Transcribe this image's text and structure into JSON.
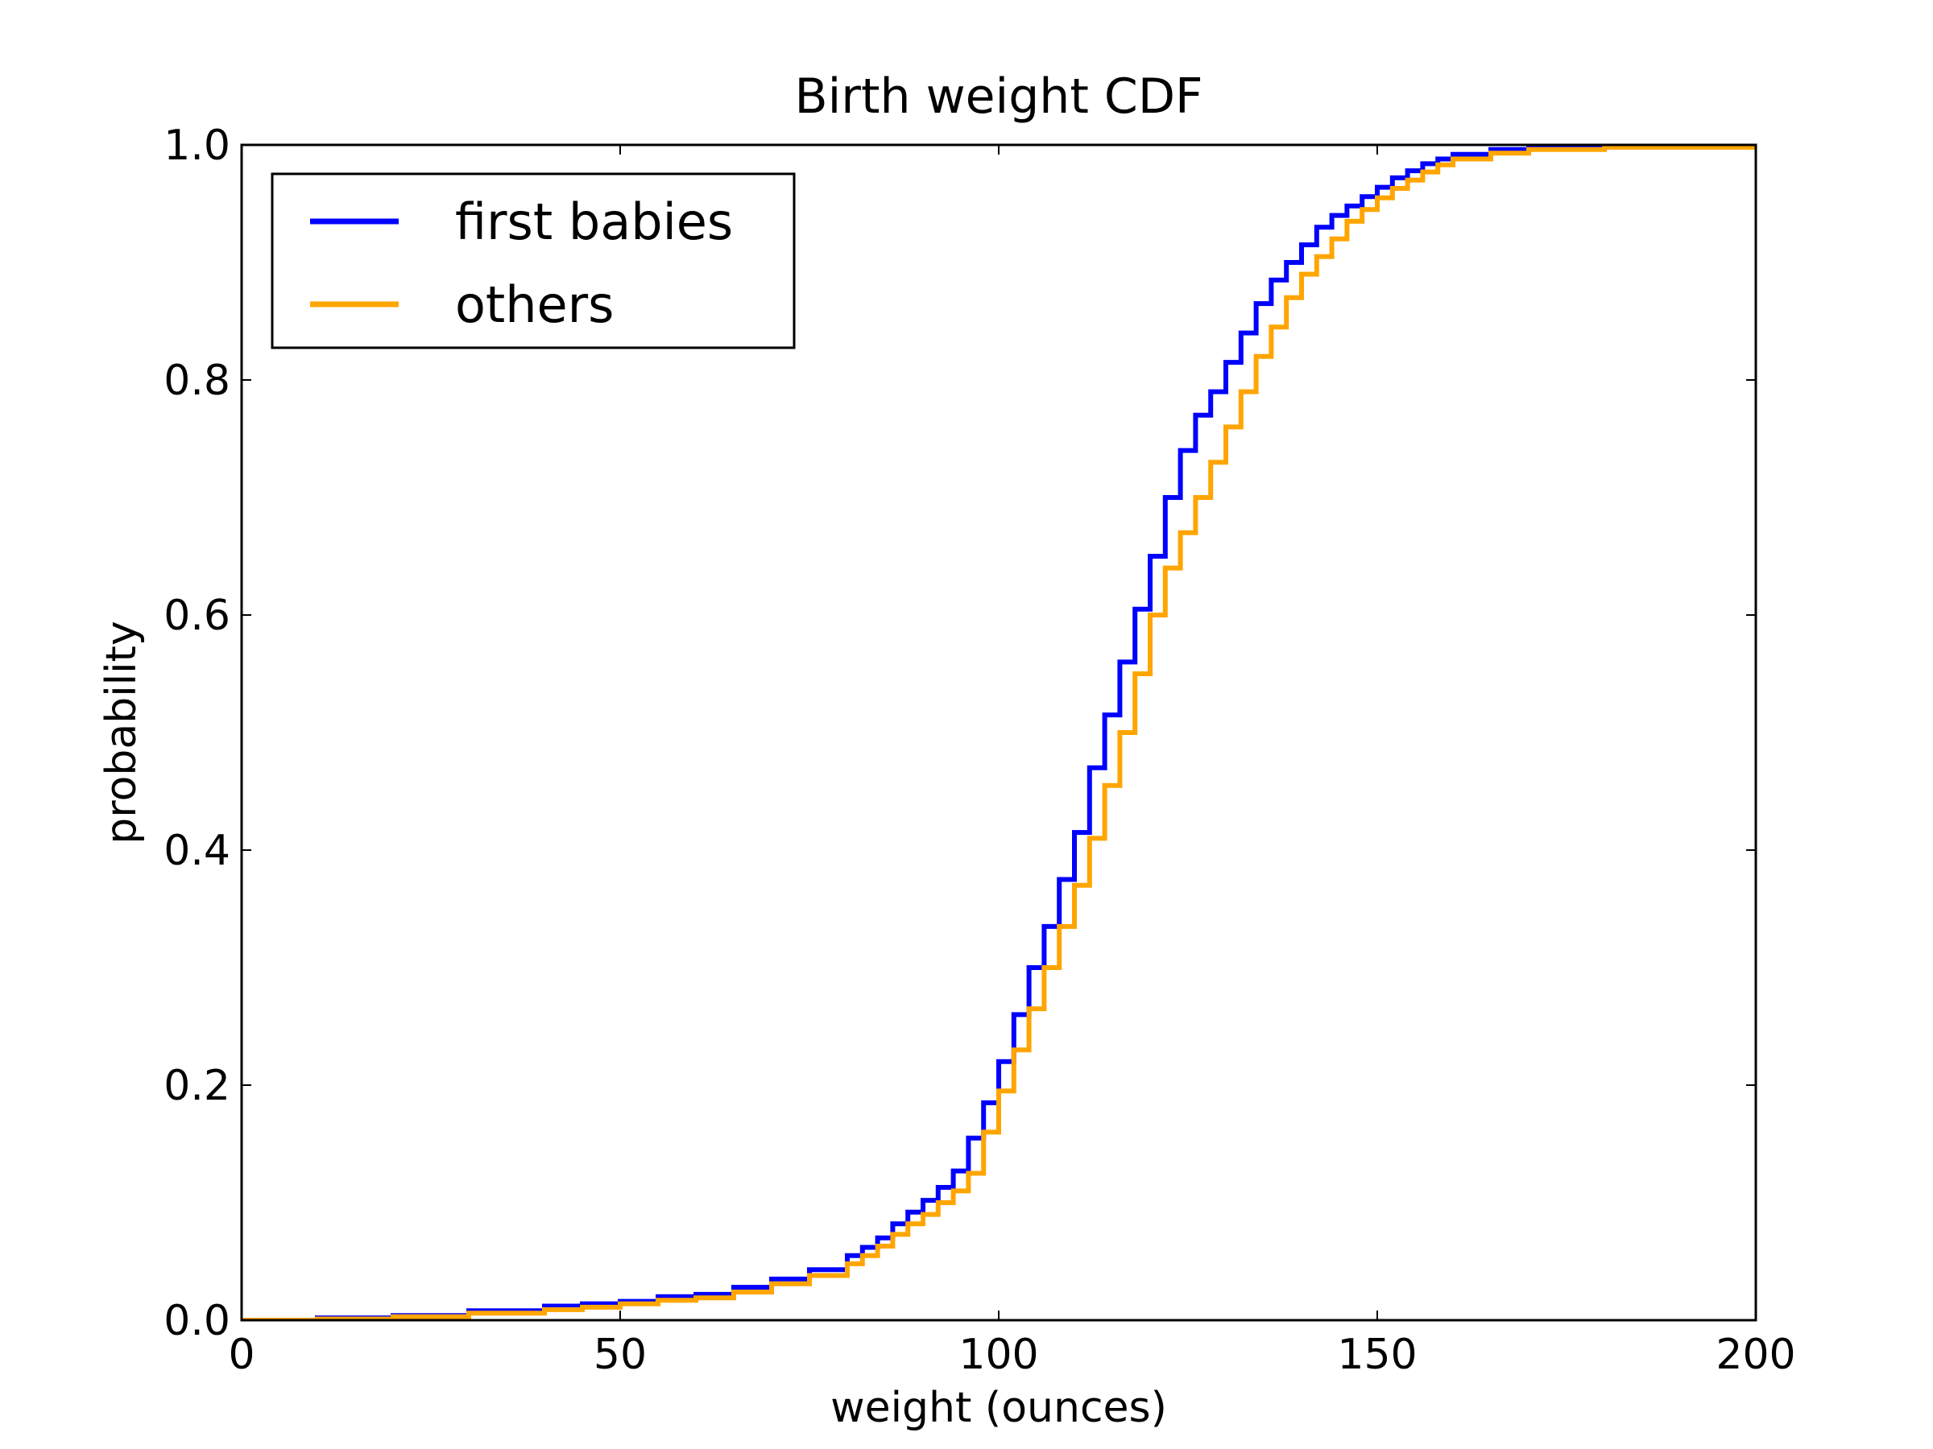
{
  "chart_data": {
    "type": "line",
    "step": true,
    "title": "Birth weight CDF",
    "xlabel": "weight (ounces)",
    "ylabel": "probability",
    "xlim": [
      0,
      200
    ],
    "ylim": [
      0,
      1.0
    ],
    "x_ticks": [
      0,
      50,
      100,
      150,
      200
    ],
    "x_tick_labels": [
      "0",
      "50",
      "100",
      "150",
      "200"
    ],
    "y_ticks": [
      0,
      0.2,
      0.4,
      0.6,
      0.8,
      1.0
    ],
    "y_tick_labels": [
      "0.0",
      "0.2",
      "0.4",
      "0.6",
      "0.8",
      "1.0"
    ],
    "grid": false,
    "legend_position": "top-left",
    "series": [
      {
        "name": "first babies",
        "color": "#0000ff",
        "x": [
          0,
          10,
          20,
          30,
          40,
          45,
          50,
          55,
          60,
          65,
          70,
          75,
          80,
          82,
          84,
          86,
          88,
          90,
          92,
          94,
          96,
          98,
          100,
          102,
          104,
          106,
          108,
          110,
          112,
          114,
          116,
          118,
          120,
          122,
          124,
          126,
          128,
          130,
          132,
          134,
          136,
          138,
          140,
          142,
          144,
          146,
          148,
          150,
          152,
          154,
          156,
          158,
          160,
          165,
          170,
          180,
          200
        ],
        "y": [
          0.0,
          0.002,
          0.004,
          0.008,
          0.012,
          0.014,
          0.016,
          0.02,
          0.022,
          0.028,
          0.035,
          0.043,
          0.055,
          0.062,
          0.07,
          0.082,
          0.092,
          0.102,
          0.113,
          0.127,
          0.155,
          0.185,
          0.22,
          0.26,
          0.3,
          0.335,
          0.375,
          0.415,
          0.47,
          0.515,
          0.56,
          0.605,
          0.65,
          0.7,
          0.74,
          0.77,
          0.79,
          0.815,
          0.84,
          0.865,
          0.885,
          0.9,
          0.915,
          0.93,
          0.94,
          0.948,
          0.956,
          0.964,
          0.972,
          0.978,
          0.984,
          0.988,
          0.992,
          0.996,
          0.998,
          0.999,
          1.0
        ]
      },
      {
        "name": "others",
        "color": "#ffa500",
        "x": [
          0,
          10,
          20,
          30,
          40,
          45,
          50,
          55,
          60,
          65,
          70,
          75,
          80,
          82,
          84,
          86,
          88,
          90,
          92,
          94,
          96,
          98,
          100,
          102,
          104,
          106,
          108,
          110,
          112,
          114,
          116,
          118,
          120,
          122,
          124,
          126,
          128,
          130,
          132,
          134,
          136,
          138,
          140,
          142,
          144,
          146,
          148,
          150,
          152,
          154,
          156,
          158,
          160,
          165,
          170,
          180,
          200
        ],
        "y": [
          0.0,
          0.001,
          0.003,
          0.006,
          0.009,
          0.011,
          0.014,
          0.017,
          0.019,
          0.024,
          0.031,
          0.038,
          0.048,
          0.055,
          0.063,
          0.073,
          0.082,
          0.09,
          0.1,
          0.11,
          0.125,
          0.16,
          0.195,
          0.23,
          0.265,
          0.3,
          0.335,
          0.37,
          0.41,
          0.455,
          0.5,
          0.55,
          0.6,
          0.64,
          0.67,
          0.7,
          0.73,
          0.76,
          0.79,
          0.82,
          0.845,
          0.87,
          0.89,
          0.905,
          0.92,
          0.935,
          0.945,
          0.955,
          0.963,
          0.97,
          0.977,
          0.983,
          0.988,
          0.993,
          0.996,
          0.998,
          1.0
        ]
      }
    ]
  }
}
